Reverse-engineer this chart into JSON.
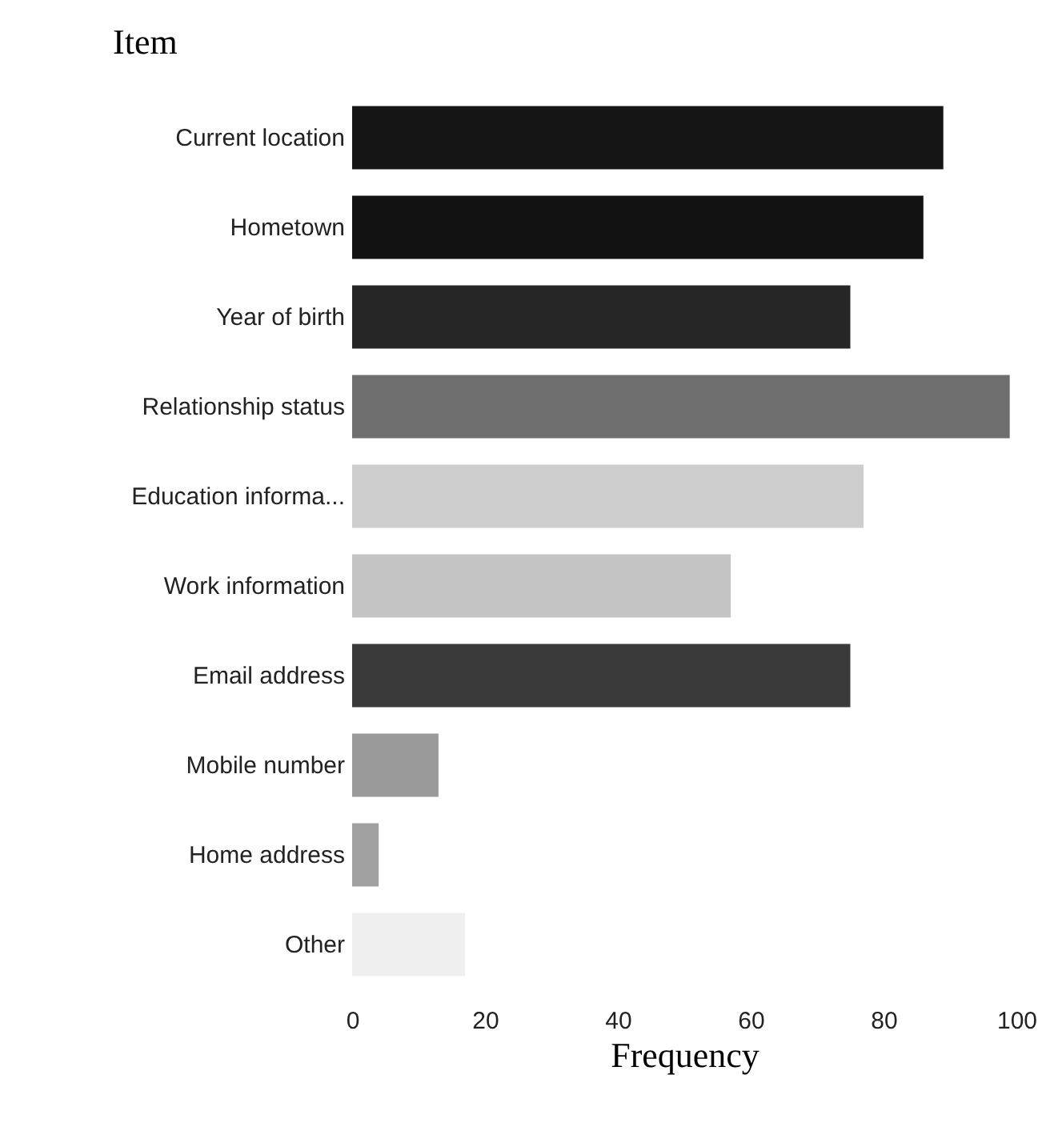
{
  "chart_data": {
    "type": "bar",
    "orientation": "horizontal",
    "ylabel": "Item",
    "xlabel": "Frequency",
    "categories": [
      "Current location",
      "Hometown",
      "Year of birth",
      "Relationship status",
      "Education informa...",
      "Work information",
      "Email address",
      "Mobile number",
      "Home address",
      "Other"
    ],
    "values": [
      89,
      86,
      75,
      99,
      77,
      57,
      75,
      13,
      4,
      17
    ],
    "colors": [
      "#151515",
      "#121212",
      "#262626",
      "#6e6e6e",
      "#cdcdcd",
      "#c4c4c4",
      "#3a3a3a",
      "#9a9a9a",
      "#a0a0a0",
      "#efefef"
    ],
    "xlim": [
      0,
      100
    ],
    "xticks": [
      0,
      20,
      40,
      60,
      80,
      100
    ],
    "grid": false
  }
}
